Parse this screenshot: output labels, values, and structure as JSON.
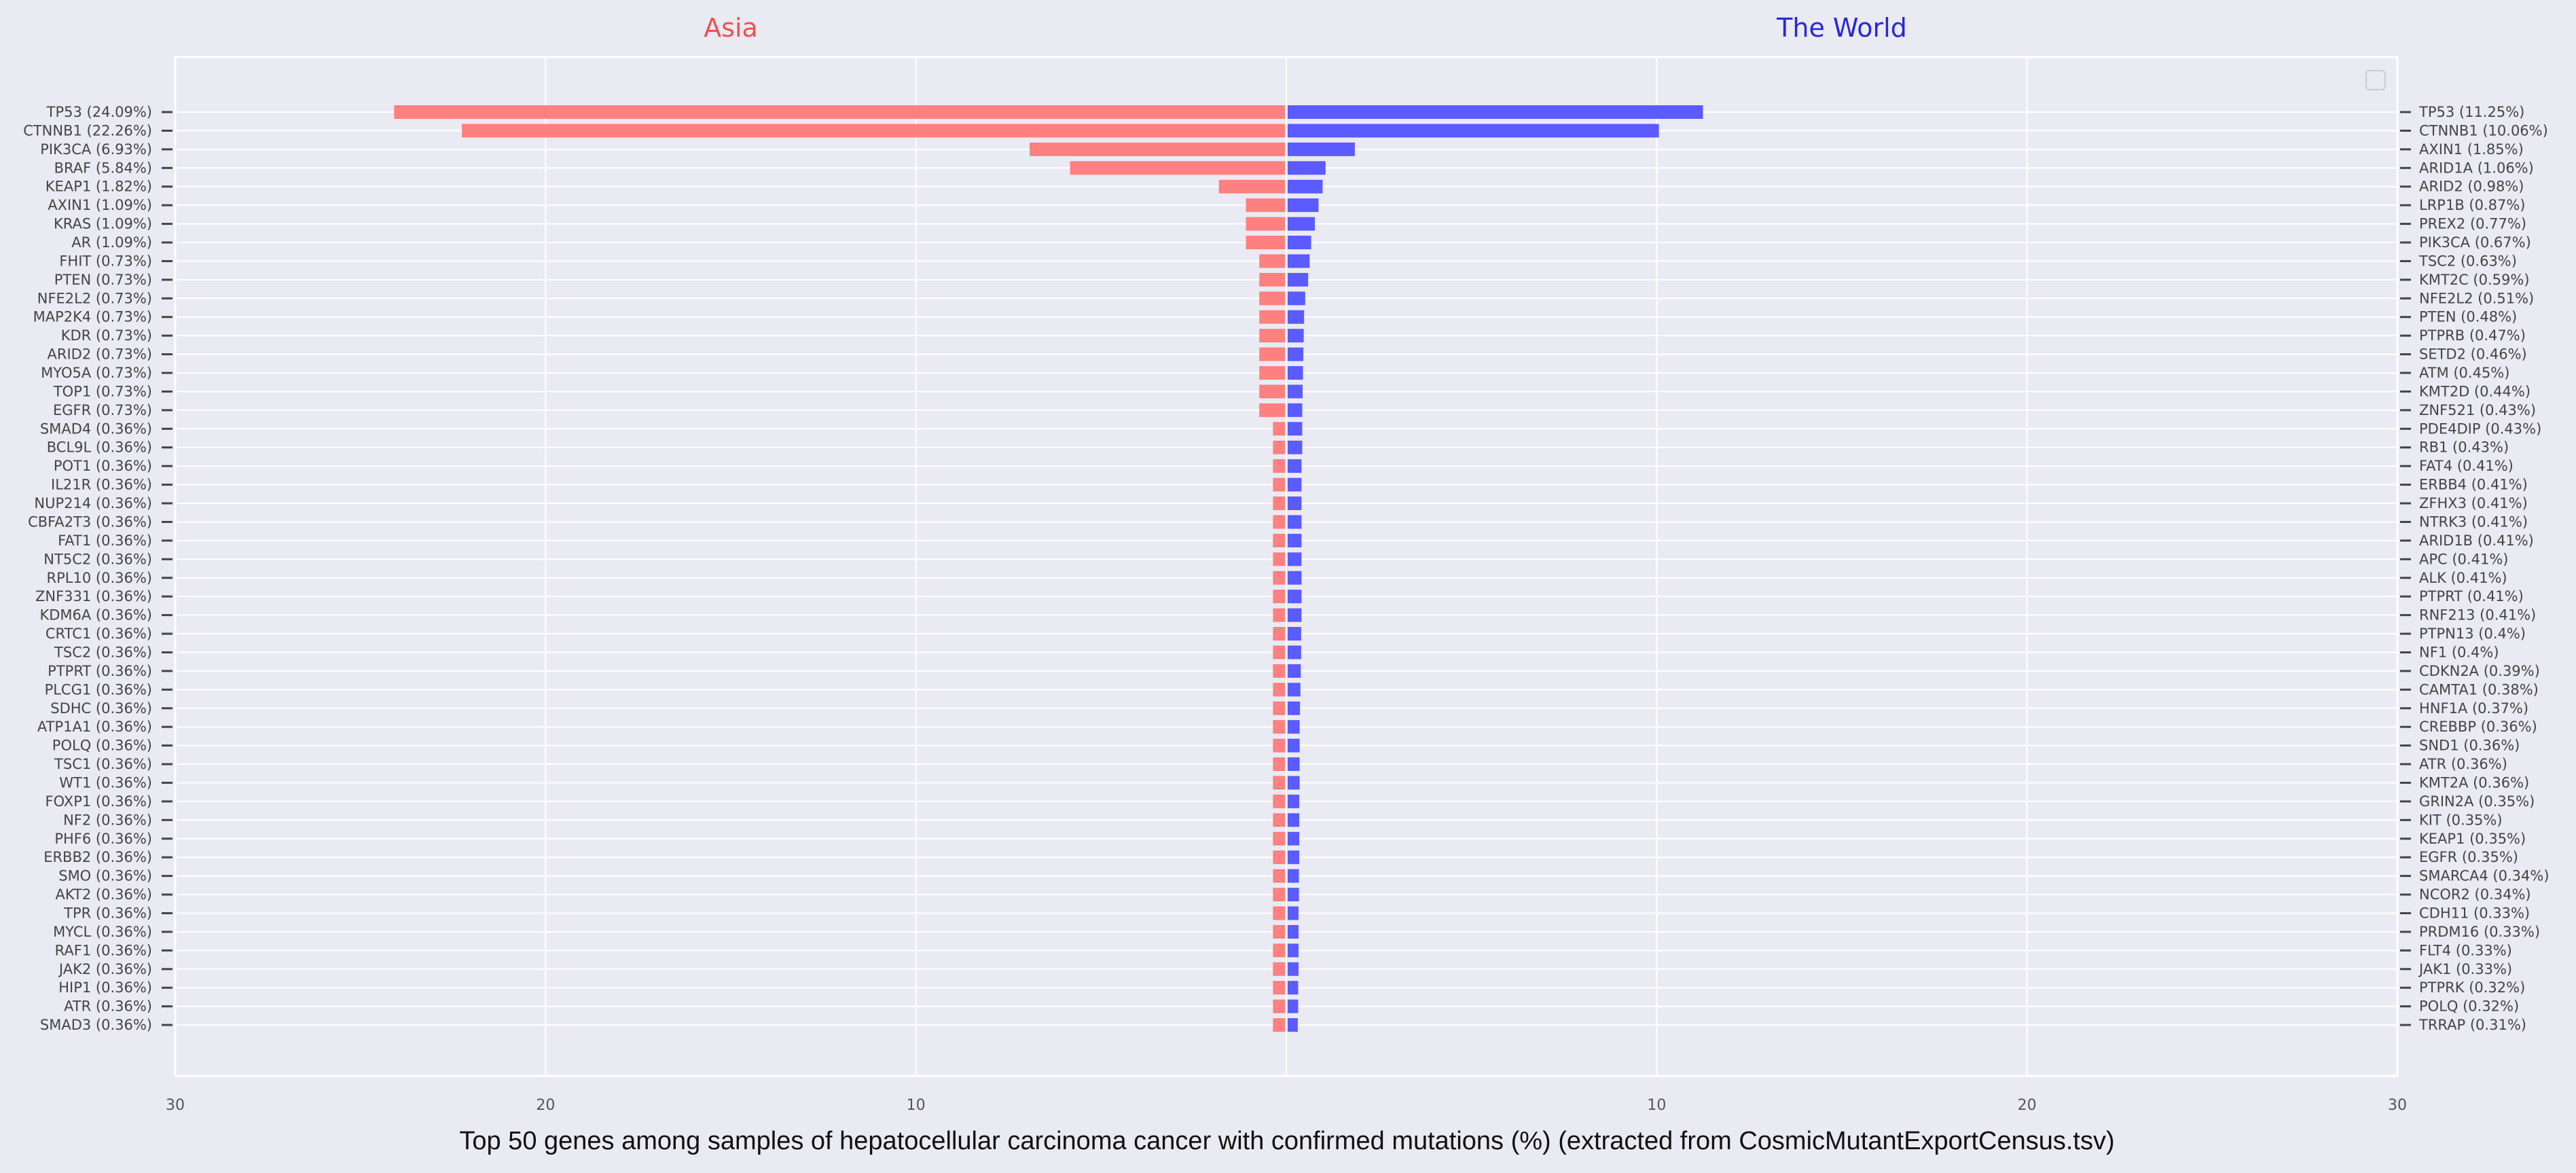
{
  "chart_data": {
    "type": "bar",
    "orientation": "horizontal-diverging",
    "title": "Top 50 genes among samples of hepatocellular carcinoma cancer with confirmed mutations (%) (extracted from CosmicMutantExportCensus.tsv)",
    "xlim": [
      -30,
      30
    ],
    "x_ticks": [
      {
        "value": -30,
        "label": "30"
      },
      {
        "value": -20,
        "label": "20"
      },
      {
        "value": -10,
        "label": "10"
      },
      {
        "value": 10,
        "label": "10"
      },
      {
        "value": 20,
        "label": "20"
      },
      {
        "value": 30,
        "label": "30"
      }
    ],
    "grid": true,
    "legend": "top-right (empty)",
    "series": [
      {
        "name": "Asia",
        "side": "left",
        "color": "#ff8080",
        "title_color": "#f05050",
        "categories": [
          "TP53 (24.09%)",
          "CTNNB1 (22.26%)",
          "PIK3CA (6.93%)",
          "BRAF (5.84%)",
          "KEAP1 (1.82%)",
          "AXIN1 (1.09%)",
          "KRAS (1.09%)",
          "AR (1.09%)",
          "FHIT (0.73%)",
          "PTEN (0.73%)",
          "NFE2L2 (0.73%)",
          "MAP2K4 (0.73%)",
          "KDR (0.73%)",
          "ARID2 (0.73%)",
          "MYO5A (0.73%)",
          "TOP1 (0.73%)",
          "EGFR (0.73%)",
          "SMAD4 (0.36%)",
          "BCL9L (0.36%)",
          "POT1 (0.36%)",
          "IL21R (0.36%)",
          "NUP214 (0.36%)",
          "CBFA2T3 (0.36%)",
          "FAT1 (0.36%)",
          "NT5C2 (0.36%)",
          "RPL10 (0.36%)",
          "ZNF331 (0.36%)",
          "KDM6A (0.36%)",
          "CRTC1 (0.36%)",
          "TSC2 (0.36%)",
          "PTPRT (0.36%)",
          "PLCG1 (0.36%)",
          "SDHC (0.36%)",
          "ATP1A1 (0.36%)",
          "POLQ (0.36%)",
          "TSC1 (0.36%)",
          "WT1 (0.36%)",
          "FOXP1 (0.36%)",
          "NF2 (0.36%)",
          "PHF6 (0.36%)",
          "ERBB2 (0.36%)",
          "SMO (0.36%)",
          "AKT2 (0.36%)",
          "TPR (0.36%)",
          "MYCL (0.36%)",
          "RAF1 (0.36%)",
          "JAK2 (0.36%)",
          "HIP1 (0.36%)",
          "ATR (0.36%)",
          "SMAD3 (0.36%)"
        ],
        "values": [
          24.09,
          22.26,
          6.93,
          5.84,
          1.82,
          1.09,
          1.09,
          1.09,
          0.73,
          0.73,
          0.73,
          0.73,
          0.73,
          0.73,
          0.73,
          0.73,
          0.73,
          0.36,
          0.36,
          0.36,
          0.36,
          0.36,
          0.36,
          0.36,
          0.36,
          0.36,
          0.36,
          0.36,
          0.36,
          0.36,
          0.36,
          0.36,
          0.36,
          0.36,
          0.36,
          0.36,
          0.36,
          0.36,
          0.36,
          0.36,
          0.36,
          0.36,
          0.36,
          0.36,
          0.36,
          0.36,
          0.36,
          0.36,
          0.36,
          0.36
        ]
      },
      {
        "name": "The World",
        "side": "right",
        "color": "#5b5bff",
        "title_color": "#2828d8",
        "categories": [
          "TP53 (11.25%)",
          "CTNNB1 (10.06%)",
          "AXIN1 (1.85%)",
          "ARID1A (1.06%)",
          "ARID2 (0.98%)",
          "LRP1B (0.87%)",
          "PREX2 (0.77%)",
          "PIK3CA (0.67%)",
          "TSC2 (0.63%)",
          "KMT2C (0.59%)",
          "NFE2L2 (0.51%)",
          "PTEN (0.48%)",
          "PTPRB (0.47%)",
          "SETD2 (0.46%)",
          "ATM (0.45%)",
          "KMT2D (0.44%)",
          "ZNF521 (0.43%)",
          "PDE4DIP (0.43%)",
          "RB1 (0.43%)",
          "FAT4 (0.41%)",
          "ERBB4 (0.41%)",
          "ZFHX3 (0.41%)",
          "NTRK3 (0.41%)",
          "ARID1B (0.41%)",
          "APC (0.41%)",
          "ALK (0.41%)",
          "PTPRT (0.41%)",
          "RNF213 (0.41%)",
          "PTPN13 (0.4%)",
          "NF1 (0.4%)",
          "CDKN2A (0.39%)",
          "CAMTA1 (0.38%)",
          "HNF1A (0.37%)",
          "CREBBP (0.36%)",
          "SND1 (0.36%)",
          "ATR (0.36%)",
          "KMT2A (0.36%)",
          "GRIN2A (0.35%)",
          "KIT (0.35%)",
          "KEAP1 (0.35%)",
          "EGFR (0.35%)",
          "SMARCA4 (0.34%)",
          "NCOR2 (0.34%)",
          "CDH11 (0.33%)",
          "PRDM16 (0.33%)",
          "FLT4 (0.33%)",
          "JAK1 (0.33%)",
          "PTPRK (0.32%)",
          "POLQ (0.32%)",
          "TRRAP (0.31%)"
        ],
        "values": [
          11.25,
          10.06,
          1.85,
          1.06,
          0.98,
          0.87,
          0.77,
          0.67,
          0.63,
          0.59,
          0.51,
          0.48,
          0.47,
          0.46,
          0.45,
          0.44,
          0.43,
          0.43,
          0.43,
          0.41,
          0.41,
          0.41,
          0.41,
          0.41,
          0.41,
          0.41,
          0.41,
          0.41,
          0.4,
          0.4,
          0.39,
          0.38,
          0.37,
          0.36,
          0.36,
          0.36,
          0.36,
          0.35,
          0.35,
          0.35,
          0.35,
          0.34,
          0.34,
          0.33,
          0.33,
          0.33,
          0.33,
          0.32,
          0.32,
          0.31
        ]
      }
    ]
  }
}
